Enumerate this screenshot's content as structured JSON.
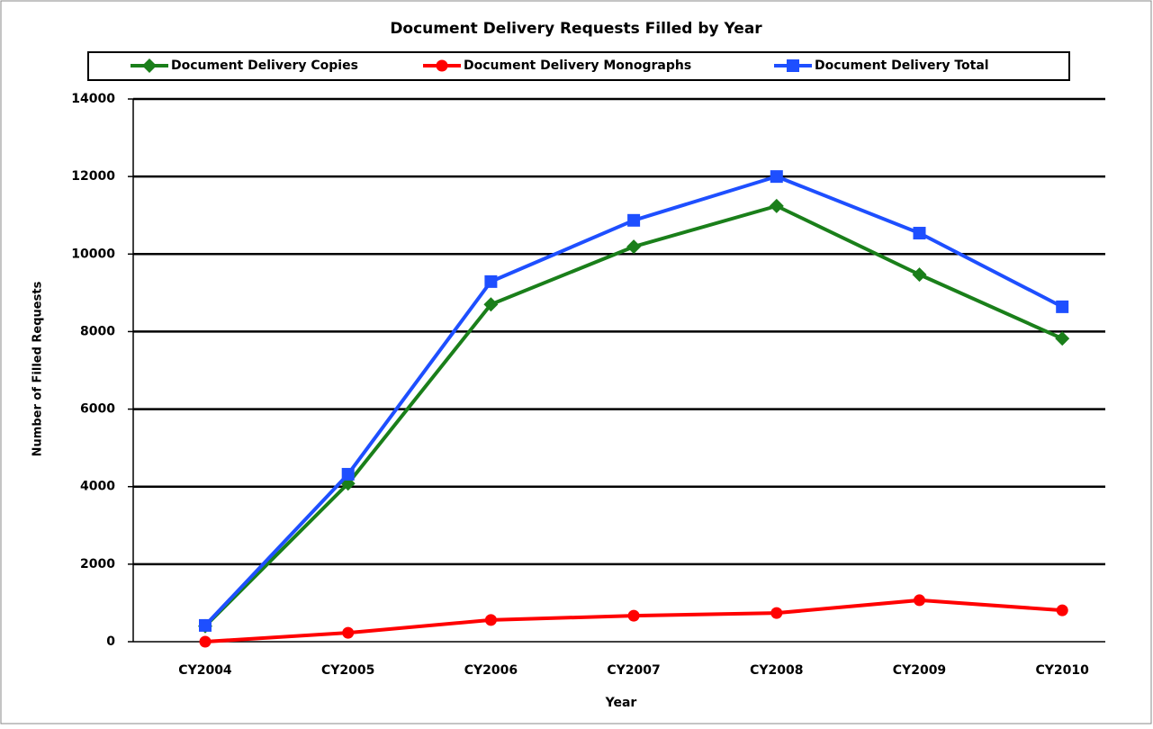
{
  "chart_data": {
    "type": "line",
    "title": "Document Delivery Requests Filled by Year",
    "xlabel": "Year",
    "ylabel": "Number of Filled Requests",
    "categories": [
      "CY2004",
      "CY2005",
      "CY2006",
      "CY2007",
      "CY2008",
      "CY2009",
      "CY2010"
    ],
    "series": [
      {
        "name": "Document Delivery Copies",
        "color": "#1a7f1a",
        "marker": "diamond",
        "values": [
          400,
          4080,
          8700,
          10190,
          11240,
          9470,
          7820
        ]
      },
      {
        "name": "Document Delivery Monographs",
        "color": "#ff0000",
        "marker": "circle",
        "values": [
          0,
          230,
          560,
          670,
          740,
          1070,
          810
        ]
      },
      {
        "name": "Document Delivery Total",
        "color": "#1e4fff",
        "marker": "square",
        "values": [
          420,
          4320,
          9290,
          10870,
          12000,
          10540,
          8640
        ]
      }
    ],
    "ylim": [
      0,
      14000
    ],
    "yticks": [
      0,
      2000,
      4000,
      6000,
      8000,
      10000,
      12000,
      14000
    ],
    "grid": true,
    "legend": "top"
  }
}
